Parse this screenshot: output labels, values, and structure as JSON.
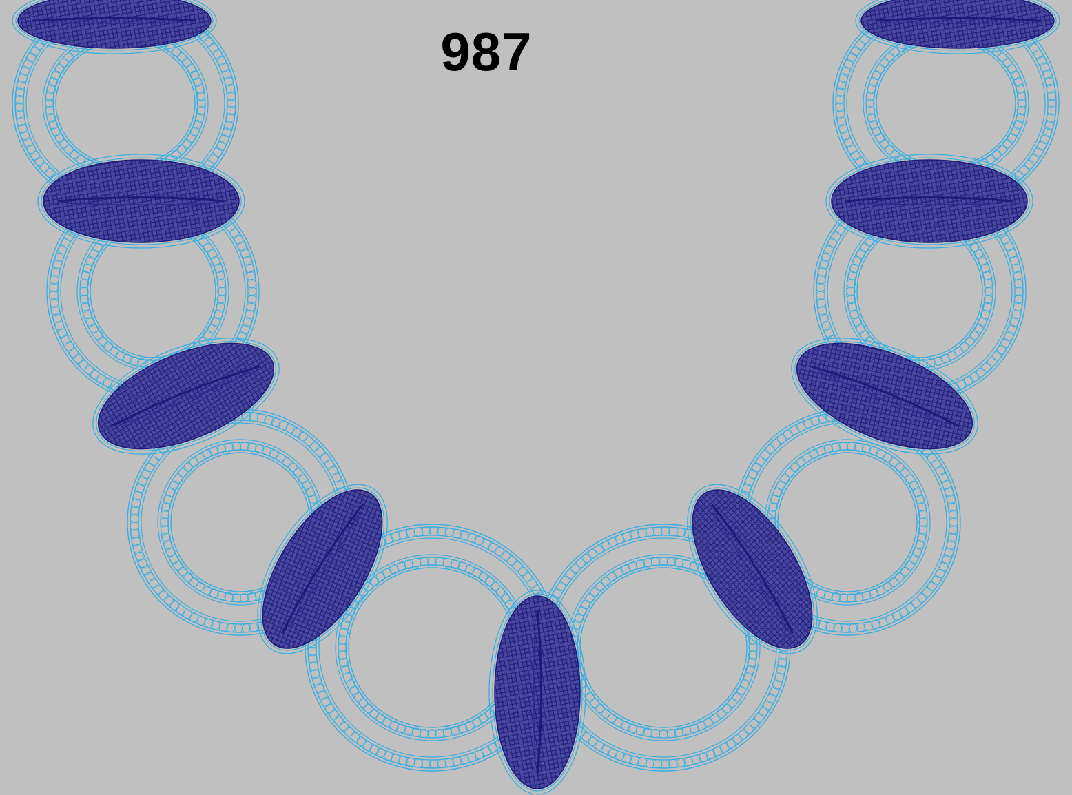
{
  "design": {
    "number": "987"
  },
  "colors": {
    "background": "#c0c0c0",
    "outline": "#3aaee0",
    "fill_stitch": "#1e1b78",
    "shadow": "#8f9aa6",
    "label": "#000000"
  },
  "elements": {
    "ring_count": 8,
    "satin_leaf_count": 9
  }
}
